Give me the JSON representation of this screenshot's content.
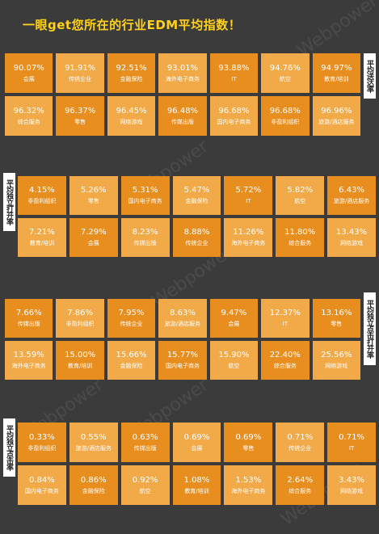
{
  "title": "一眼get您所在的行业EDM平均指数！",
  "watermark": "Webpower",
  "colors": {
    "cell_dark": "#e88e1f",
    "cell_light": "#f2aa48",
    "title": "#ffd11a",
    "background": "#3b3b3b"
  },
  "sections": [
    {
      "label": "平均送达率",
      "rows": [
        [
          {
            "value": "90.07%",
            "label": "会展"
          },
          {
            "value": "91.91%",
            "label": "传统企业"
          },
          {
            "value": "92.51%",
            "label": "金融保险"
          },
          {
            "value": "93.01%",
            "label": "海外电子商务"
          },
          {
            "value": "93.88%",
            "label": "IT"
          },
          {
            "value": "94.76%",
            "label": "航空"
          },
          {
            "value": "94.97%",
            "label": "教育/培训"
          }
        ],
        [
          {
            "value": "96.32%",
            "label": "综合服务"
          },
          {
            "value": "96.37%",
            "label": "零售"
          },
          {
            "value": "96.45%",
            "label": "网络游戏"
          },
          {
            "value": "96.48%",
            "label": "传媒出版"
          },
          {
            "value": "96.68%",
            "label": "国内电子商务"
          },
          {
            "value": "96.68%",
            "label": "非盈利组织"
          },
          {
            "value": "96.96%",
            "label": "旅游/酒店服务"
          }
        ]
      ]
    },
    {
      "label": "平均独立打开率",
      "rows": [
        [
          {
            "value": "4.15%",
            "label": "非盈利组织"
          },
          {
            "value": "5.26%",
            "label": "零售"
          },
          {
            "value": "5.31%",
            "label": "国内电子商务"
          },
          {
            "value": "5.47%",
            "label": "金融保险"
          },
          {
            "value": "5.72%",
            "label": "IT"
          },
          {
            "value": "5.82%",
            "label": "航空"
          },
          {
            "value": "6.43%",
            "label": "旅游/酒店服务"
          }
        ],
        [
          {
            "value": "7.21%",
            "label": "教育/培训"
          },
          {
            "value": "7.29%",
            "label": "会展"
          },
          {
            "value": "8.23%",
            "label": "传媒出版"
          },
          {
            "value": "8.88%",
            "label": "传统企业"
          },
          {
            "value": "11.26%",
            "label": "海外电子商务"
          },
          {
            "value": "11.80%",
            "label": "综合服务"
          },
          {
            "value": "13.43%",
            "label": "网络游戏"
          }
        ]
      ]
    },
    {
      "label": "平均独立点击打开率",
      "rows": [
        [
          {
            "value": "7.66%",
            "label": "传媒出版"
          },
          {
            "value": "7.86%",
            "label": "非盈利组织"
          },
          {
            "value": "7.95%",
            "label": "传统企业"
          },
          {
            "value": "8.63%",
            "label": "旅游/酒店服务"
          },
          {
            "value": "9.47%",
            "label": "会展"
          },
          {
            "value": "12.37%",
            "label": "IT"
          },
          {
            "value": "13.16%",
            "label": "零售"
          }
        ],
        [
          {
            "value": "13.59%",
            "label": "海外电子商务"
          },
          {
            "value": "15.00%",
            "label": "教育/培训"
          },
          {
            "value": "15.66%",
            "label": "金融保险"
          },
          {
            "value": "15.77%",
            "label": "国内电子商务"
          },
          {
            "value": "15.90%",
            "label": "航空"
          },
          {
            "value": "22.40%",
            "label": "综合服务"
          },
          {
            "value": "25.56%",
            "label": "网络游戏"
          }
        ]
      ]
    },
    {
      "label": "平均独立点击率",
      "rows": [
        [
          {
            "value": "0.33%",
            "label": "非盈利组织"
          },
          {
            "value": "0.55%",
            "label": "旅游/酒店服务"
          },
          {
            "value": "0.63%",
            "label": "传媒出版"
          },
          {
            "value": "0.69%",
            "label": "会展"
          },
          {
            "value": "0.69%",
            "label": "零售"
          },
          {
            "value": "0.71%",
            "label": "传统企业"
          },
          {
            "value": "0.71%",
            "label": "IT"
          }
        ],
        [
          {
            "value": "0.84%",
            "label": "国内电子商务"
          },
          {
            "value": "0.86%",
            "label": "金融保险"
          },
          {
            "value": "0.92%",
            "label": "航空"
          },
          {
            "value": "1.08%",
            "label": "教育/培训"
          },
          {
            "value": "1.53%",
            "label": "海外电子商务"
          },
          {
            "value": "2.64%",
            "label": "综合服务"
          },
          {
            "value": "3.43%",
            "label": "网络游戏"
          }
        ]
      ]
    }
  ]
}
